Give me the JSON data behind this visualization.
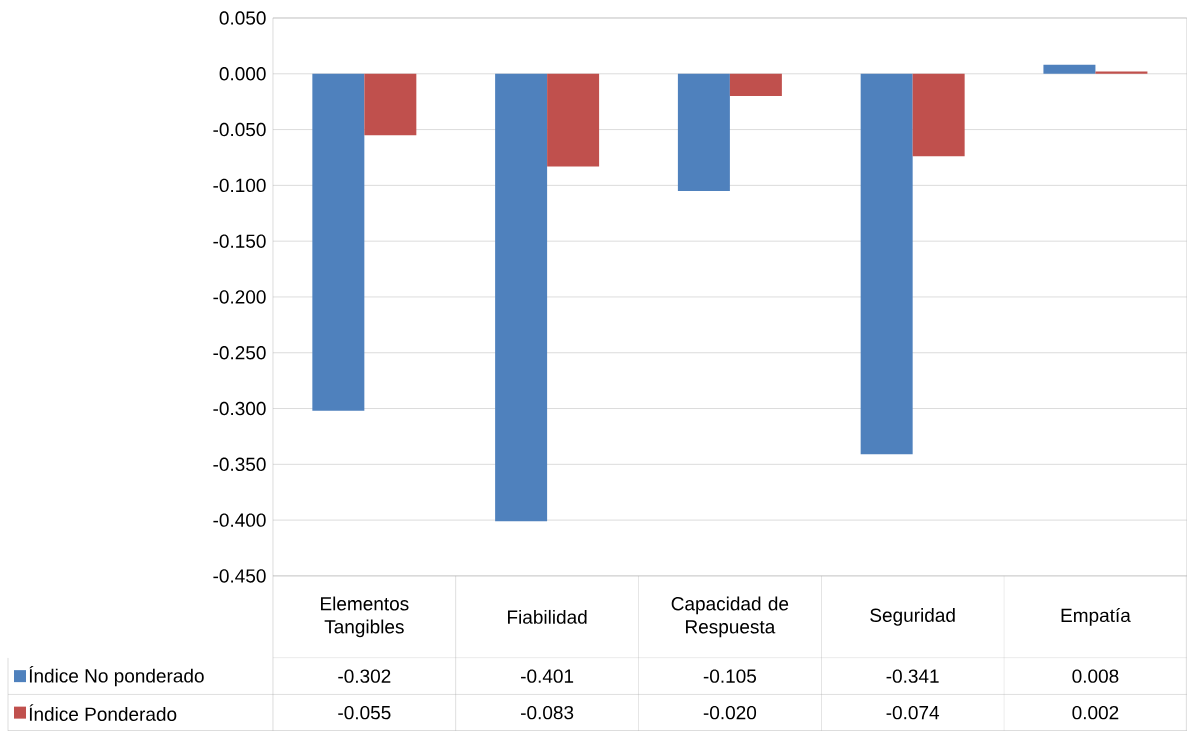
{
  "chart_data": {
    "type": "bar",
    "categories": [
      "Elementos Tangibles",
      "Fiabilidad",
      "Capacidad de Respuesta",
      "Seguridad",
      "Empatía"
    ],
    "series": [
      {
        "name": "Índice No ponderado",
        "color": "#4f81bd",
        "values": [
          -0.302,
          -0.401,
          -0.105,
          -0.341,
          0.008
        ],
        "value_labels": [
          "-0.302",
          "-0.401",
          "-0.105",
          "-0.341",
          "0.008"
        ]
      },
      {
        "name": "Índice Ponderado",
        "color": "#c0504d",
        "values": [
          -0.055,
          -0.083,
          -0.02,
          -0.074,
          0.002
        ],
        "value_labels": [
          "-0.055",
          "-0.083",
          "-0.020",
          "-0.074",
          "0.002"
        ]
      }
    ],
    "ylim": [
      -0.45,
      0.05
    ],
    "yticks": [
      {
        "value": -0.45,
        "label": "-0.450"
      },
      {
        "value": -0.4,
        "label": "-0.400"
      },
      {
        "value": -0.35,
        "label": "-0.350"
      },
      {
        "value": -0.3,
        "label": "-0.300"
      },
      {
        "value": -0.25,
        "label": "-0.250"
      },
      {
        "value": -0.2,
        "label": "-0.200"
      },
      {
        "value": -0.15,
        "label": "-0.150"
      },
      {
        "value": -0.1,
        "label": "-0.100"
      },
      {
        "value": -0.05,
        "label": "-0.050"
      },
      {
        "value": 0.0,
        "label": "0.000"
      },
      {
        "value": 0.05,
        "label": "0.050"
      }
    ],
    "grid": "y",
    "legend": "bottom"
  }
}
